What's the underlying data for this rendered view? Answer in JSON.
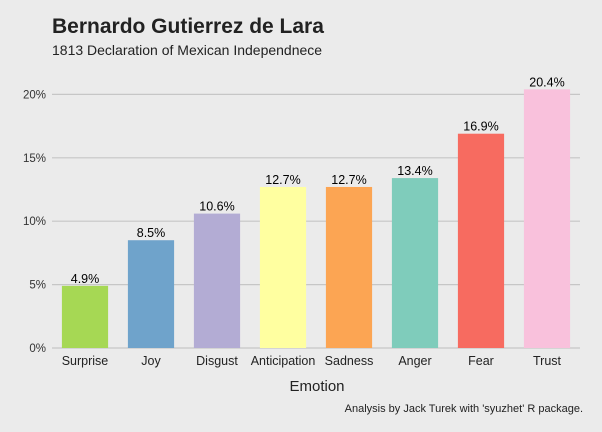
{
  "chart_data": {
    "type": "bar",
    "title": "Bernardo Gutierrez de Lara",
    "subtitle": "1813 Declaration of Mexican Independnece",
    "xlabel": "Emotion",
    "ylabel": "",
    "caption": "Analysis by Jack Turek with 'syuzhet' R package.",
    "categories": [
      "Surprise",
      "Joy",
      "Disgust",
      "Anticipation",
      "Sadness",
      "Anger",
      "Fear",
      "Trust"
    ],
    "values": [
      4.9,
      8.5,
      10.6,
      12.7,
      12.7,
      13.4,
      16.9,
      20.4
    ],
    "value_labels": [
      "4.9%",
      "8.5%",
      "10.6%",
      "12.7%",
      "12.7%",
      "13.4%",
      "16.9%",
      "20.4%"
    ],
    "colors": [
      "#a6d854",
      "#6fa3cb",
      "#b3acd4",
      "#ffffa0",
      "#fca553",
      "#7fccbb",
      "#f76b60",
      "#f9c1dc"
    ],
    "yticks": [
      0,
      5,
      10,
      15,
      20
    ],
    "ytick_labels": [
      "0%",
      "5%",
      "10%",
      "15%",
      "20%"
    ],
    "ylim": [
      0,
      21
    ],
    "grid": true,
    "legend": "none"
  }
}
